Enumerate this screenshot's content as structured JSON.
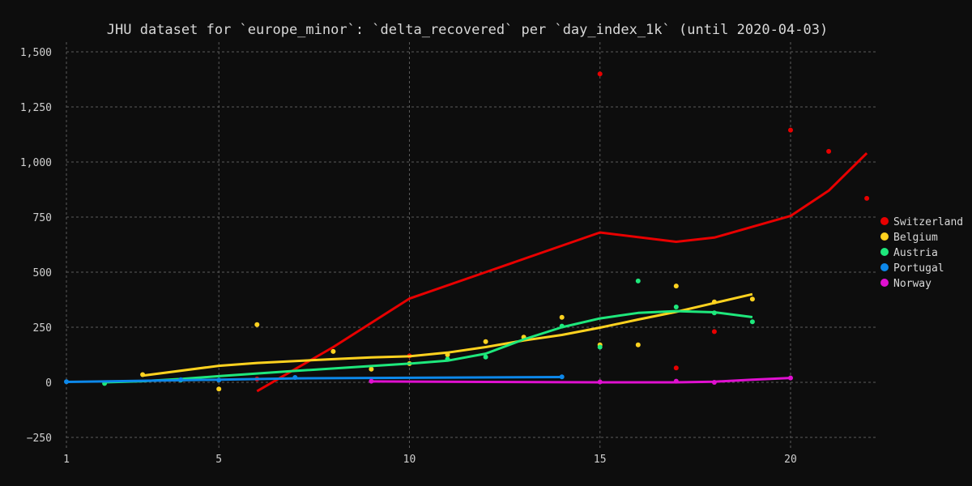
{
  "chart_data": {
    "type": "scatter",
    "title": "JHU dataset for `europe_minor`: `delta_recovered` per `day_index_1k` (until 2020-04-03)",
    "xlabel": "",
    "ylabel": "",
    "xlim": [
      1,
      23.3
    ],
    "ylim": [
      -300,
      1550
    ],
    "x_ticks": [
      1,
      5,
      10,
      15,
      20
    ],
    "y_ticks": [
      -250,
      0,
      250,
      500,
      750,
      1000,
      1250,
      1500
    ],
    "y_tick_labels": [
      "−250",
      "0",
      "250",
      "500",
      "750",
      "1,000",
      "1,250",
      "1,500"
    ],
    "grid": true,
    "legend_position": "right",
    "series": [
      {
        "name": "Switzerland",
        "color": "#e80000",
        "points": [
          [
            6,
            15
          ],
          [
            10,
            120
          ],
          [
            15,
            1400
          ],
          [
            17,
            65
          ],
          [
            18,
            230
          ],
          [
            20,
            1145
          ],
          [
            21,
            1048
          ],
          [
            22,
            835
          ]
        ],
        "trend": [
          [
            6,
            -40
          ],
          [
            8,
            160
          ],
          [
            10,
            380
          ],
          [
            12,
            500
          ],
          [
            15,
            680
          ],
          [
            17,
            638
          ],
          [
            18,
            657
          ],
          [
            20,
            755
          ],
          [
            21,
            870
          ],
          [
            22,
            1040
          ]
        ]
      },
      {
        "name": "Belgium",
        "color": "#ffd21f",
        "points": [
          [
            3,
            35
          ],
          [
            5,
            -30
          ],
          [
            6,
            262
          ],
          [
            8,
            140
          ],
          [
            9,
            60
          ],
          [
            10,
            85
          ],
          [
            11,
            125
          ],
          [
            12,
            185
          ],
          [
            13,
            205
          ],
          [
            14,
            295
          ],
          [
            15,
            170
          ],
          [
            16,
            170
          ],
          [
            17,
            437
          ],
          [
            18,
            365
          ],
          [
            19,
            378
          ]
        ],
        "trend": [
          [
            3,
            30
          ],
          [
            5,
            75
          ],
          [
            6,
            88
          ],
          [
            8,
            105
          ],
          [
            9,
            113
          ],
          [
            10,
            118
          ],
          [
            11,
            135
          ],
          [
            12,
            160
          ],
          [
            13,
            190
          ],
          [
            14,
            215
          ],
          [
            15,
            248
          ],
          [
            16,
            285
          ],
          [
            17,
            320
          ],
          [
            18,
            360
          ],
          [
            19,
            400
          ]
        ]
      },
      {
        "name": "Austria",
        "color": "#1ee87c",
        "points": [
          [
            2,
            -5
          ],
          [
            4,
            10
          ],
          [
            11,
            105
          ],
          [
            12,
            115
          ],
          [
            14,
            255
          ],
          [
            15,
            160
          ],
          [
            16,
            460
          ],
          [
            17,
            342
          ],
          [
            18,
            315
          ],
          [
            19,
            275
          ]
        ],
        "trend": [
          [
            2,
            0
          ],
          [
            3,
            5
          ],
          [
            4,
            15
          ],
          [
            5,
            28
          ],
          [
            7,
            52
          ],
          [
            9,
            74
          ],
          [
            10,
            85
          ],
          [
            11,
            98
          ],
          [
            12,
            130
          ],
          [
            13,
            195
          ],
          [
            14,
            250
          ],
          [
            15,
            290
          ],
          [
            16,
            315
          ],
          [
            17,
            323
          ],
          [
            18,
            318
          ],
          [
            19,
            296
          ]
        ]
      },
      {
        "name": "Portugal",
        "color": "#0d88ea",
        "points": [
          [
            1,
            3
          ],
          [
            4,
            12
          ],
          [
            5,
            10
          ],
          [
            7,
            22
          ],
          [
            14,
            25
          ]
        ],
        "trend": [
          [
            1,
            2
          ],
          [
            3,
            7
          ],
          [
            5,
            12
          ],
          [
            7,
            18
          ],
          [
            9,
            20
          ],
          [
            14,
            24
          ]
        ]
      },
      {
        "name": "Norway",
        "color": "#e010d0",
        "points": [
          [
            9,
            5
          ],
          [
            15,
            2
          ],
          [
            17,
            5
          ],
          [
            18,
            0
          ],
          [
            20,
            20
          ]
        ],
        "trend": [
          [
            9,
            4
          ],
          [
            12,
            2
          ],
          [
            15,
            0
          ],
          [
            17,
            0
          ],
          [
            18,
            3
          ],
          [
            19,
            12
          ],
          [
            20,
            20
          ]
        ]
      }
    ]
  }
}
